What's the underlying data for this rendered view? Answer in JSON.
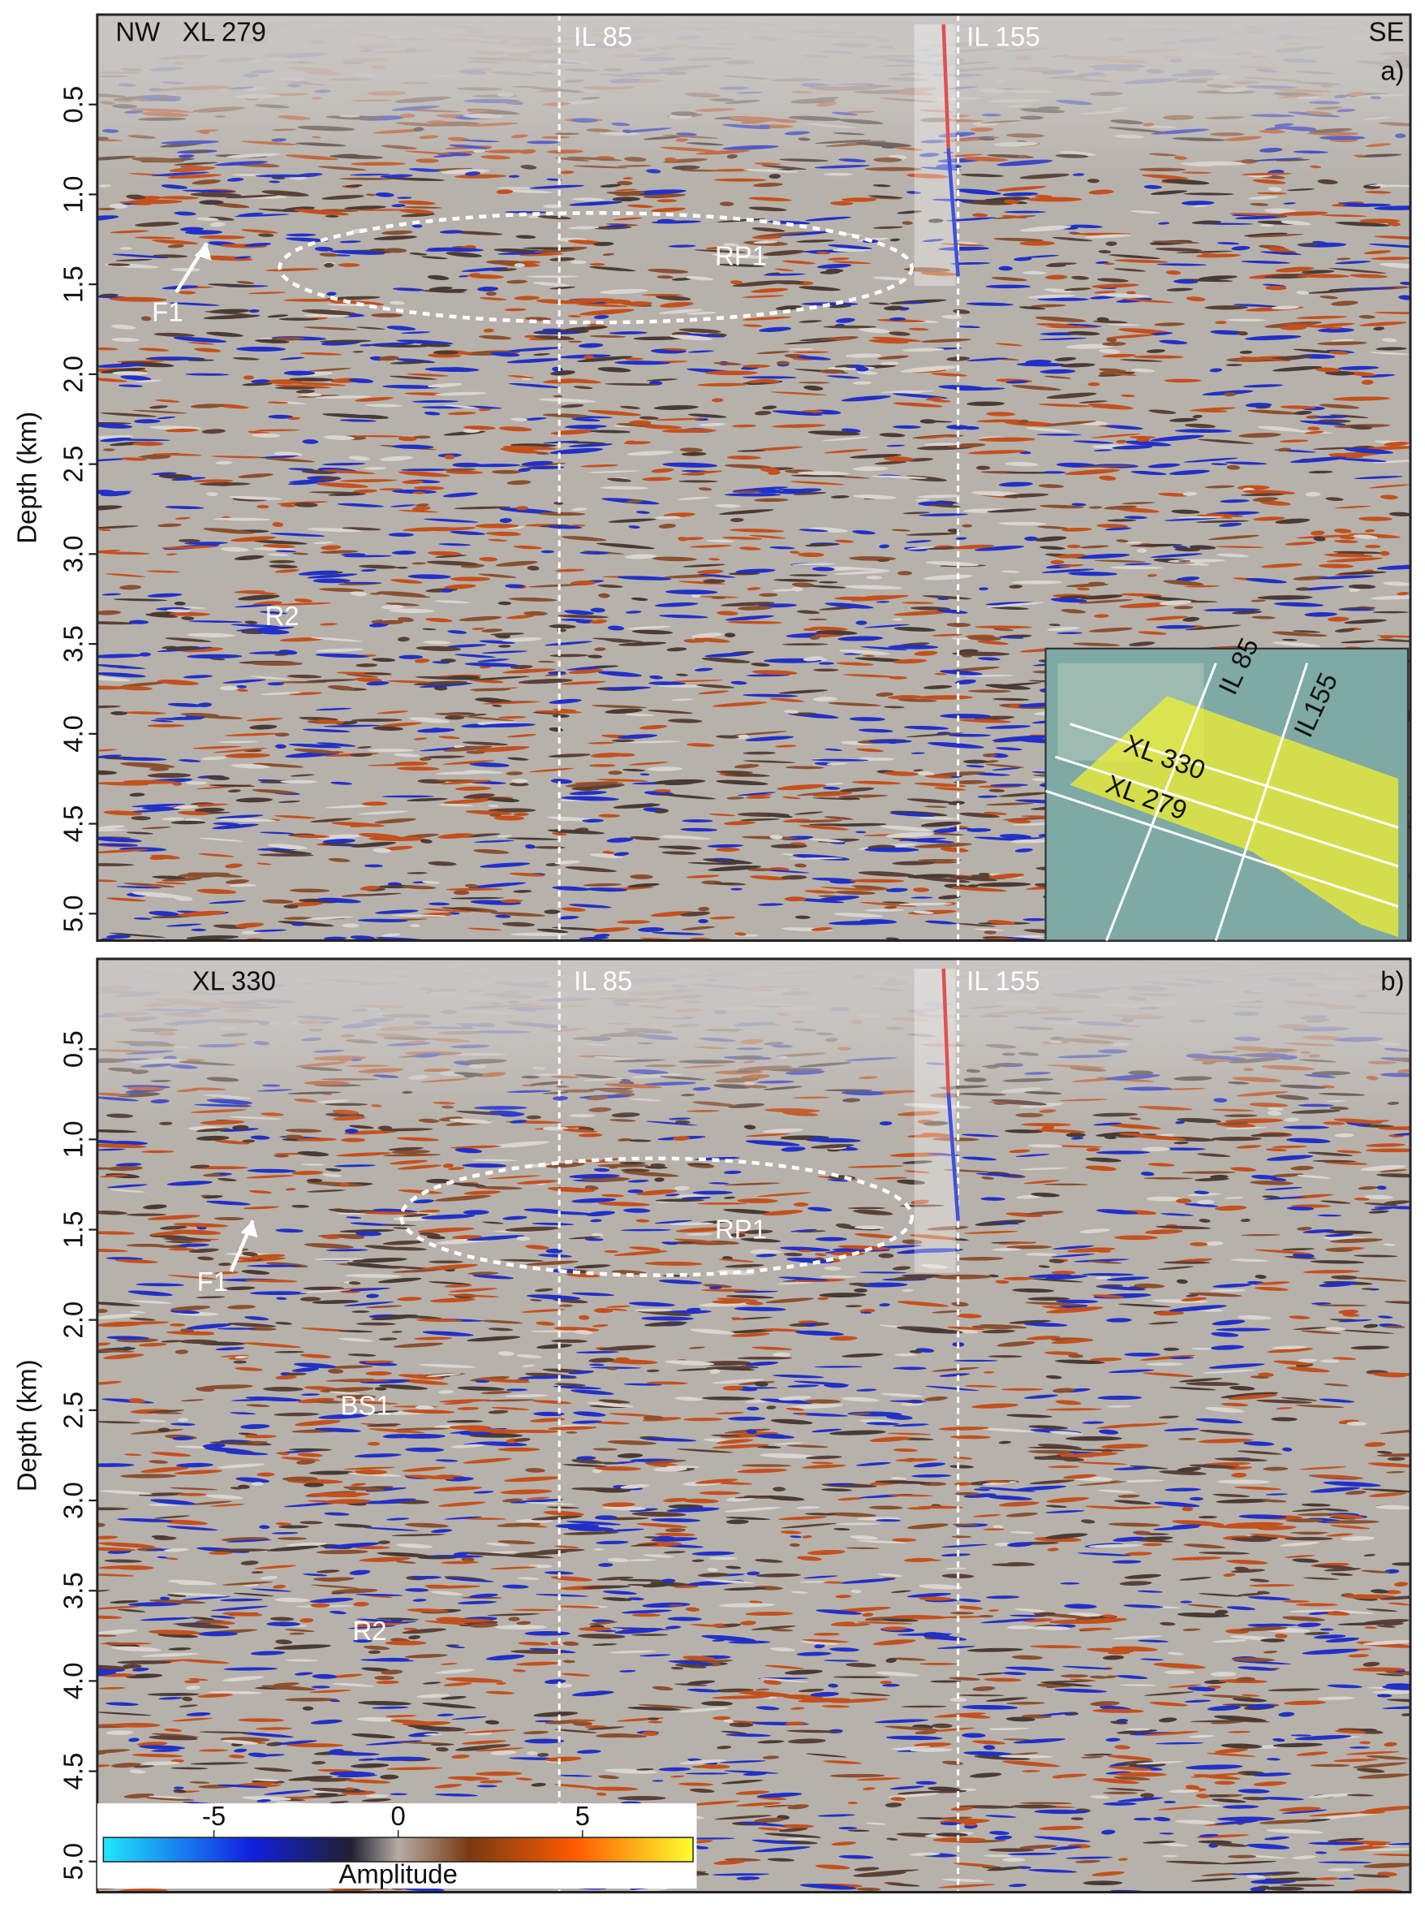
{
  "chart_data": [
    {
      "type": "seismic-section",
      "panel": "a)",
      "ylabel": "Depth (km)",
      "ylim": [
        0,
        5.15
      ],
      "yticks": [
        0.5,
        {
          "value": 1,
          "label": "1.0"
        },
        1.5,
        {
          "value": 2,
          "label": "2.0"
        },
        2.5,
        {
          "value": 3,
          "label": "3.0"
        },
        3.5,
        {
          "value": 4,
          "label": "4.0"
        },
        4.5,
        {
          "value": 5,
          "label": "5.0"
        }
      ],
      "annotations": [
        "NW",
        "XL 279",
        "IL 85",
        "IL 155",
        "SE",
        "RP1",
        "F1",
        "R2"
      ],
      "inset_labels": [
        "IL 85",
        "XL 330",
        "IL155",
        "XL 279"
      ]
    },
    {
      "type": "seismic-section",
      "panel": "b)",
      "ylabel": "Depth (km)",
      "ylim": [
        0,
        5.17
      ],
      "yticks": [
        0.5,
        {
          "value": 1,
          "label": "1.0"
        },
        1.5,
        {
          "value": 2,
          "label": "2.0"
        },
        2.5,
        {
          "value": 3,
          "label": "3.0"
        },
        3.5,
        {
          "value": 4,
          "label": "4.0"
        },
        4.5,
        {
          "value": 5,
          "label": "5.0"
        }
      ],
      "annotations": [
        "XL 330",
        "IL 85",
        "IL 155",
        "RP1",
        "F1",
        "BS1",
        "R2"
      ],
      "colorbar": {
        "label": "Amplitude",
        "lim": [
          -8,
          8
        ],
        "ticks": [
          -5,
          0,
          5
        ]
      }
    }
  ]
}
